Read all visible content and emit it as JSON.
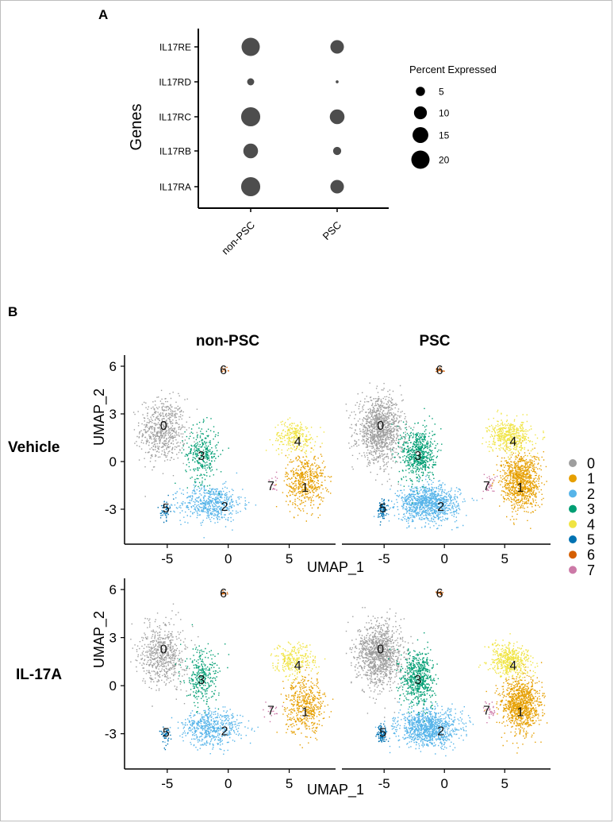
{
  "panel_a": {
    "label": "A",
    "ylabel": "Genes",
    "legend_title": "Percent Expressed"
  },
  "panel_b": {
    "label": "B",
    "col_titles": [
      "non-PSC",
      "PSC"
    ],
    "row_titles": [
      "Vehicle",
      "IL-17A"
    ],
    "xlabel": "UMAP_1",
    "ylabel": "UMAP_2"
  },
  "chart_data": [
    {
      "type": "scatter",
      "subtype": "dot-plot",
      "title": "",
      "xlabel": "",
      "ylabel": "Genes",
      "categories": [
        "non-PSC",
        "PSC"
      ],
      "genes": [
        "IL17RA",
        "IL17RB",
        "IL17RC",
        "IL17RD",
        "IL17RE"
      ],
      "percent_expressed": {
        "non-PSC": [
          22,
          13,
          22,
          3,
          20
        ],
        "PSC": [
          11,
          4,
          13,
          0.5,
          11
        ]
      },
      "legend": {
        "title": "Percent Expressed",
        "sizes": [
          5,
          10,
          15,
          20
        ],
        "position": "right"
      },
      "grid": false
    },
    {
      "type": "scatter",
      "subtype": "umap-facets",
      "title": "",
      "xlabel": "UMAP_1",
      "ylabel": "UMAP_2",
      "xticks": [
        -5,
        0,
        5
      ],
      "yticks": [
        -3,
        0,
        3,
        6
      ],
      "xlim": [
        -8.5,
        8.8
      ],
      "ylim": [
        -5.2,
        6.7
      ],
      "columns": [
        "non-PSC",
        "PSC"
      ],
      "rows": [
        "Vehicle",
        "IL-17A"
      ],
      "legend": {
        "position": "right",
        "entries": [
          "0",
          "1",
          "2",
          "3",
          "4",
          "5",
          "6",
          "7"
        ],
        "colors": [
          "#9e9e9e",
          "#e69f00",
          "#56b4e9",
          "#009e73",
          "#f0e442",
          "#0072b2",
          "#d55e00",
          "#cc79a7"
        ]
      },
      "clusters": [
        {
          "id": "0",
          "label_at": [
            -5.3,
            2.3
          ],
          "centroid": [
            -5.4,
            2.0
          ],
          "spread": [
            1.5,
            1.6
          ]
        },
        {
          "id": "1",
          "label_at": [
            6.3,
            -1.6
          ],
          "centroid": [
            6.3,
            -1.2
          ],
          "spread": [
            1.3,
            1.4
          ]
        },
        {
          "id": "2",
          "label_at": [
            -0.3,
            -2.8
          ],
          "centroid": [
            -1.4,
            -2.6
          ],
          "spread": [
            2.0,
            0.9
          ]
        },
        {
          "id": "3",
          "label_at": [
            -2.2,
            0.4
          ],
          "centroid": [
            -2.2,
            0.5
          ],
          "spread": [
            1.1,
            1.4
          ]
        },
        {
          "id": "4",
          "label_at": [
            5.7,
            1.3
          ],
          "centroid": [
            5.4,
            1.6
          ],
          "spread": [
            1.4,
            0.8
          ]
        },
        {
          "id": "5",
          "label_at": [
            -5.1,
            -2.9
          ],
          "centroid": [
            -5.2,
            -3.0
          ],
          "spread": [
            0.3,
            0.5
          ]
        },
        {
          "id": "6",
          "label_at": [
            -0.4,
            5.8
          ],
          "centroid": [
            -0.4,
            5.8
          ],
          "spread": [
            0.3,
            0.12
          ]
        },
        {
          "id": "7",
          "label_at": [
            3.5,
            -1.5
          ],
          "centroid": [
            3.7,
            -1.5
          ],
          "spread": [
            0.5,
            0.5
          ]
        }
      ]
    }
  ]
}
